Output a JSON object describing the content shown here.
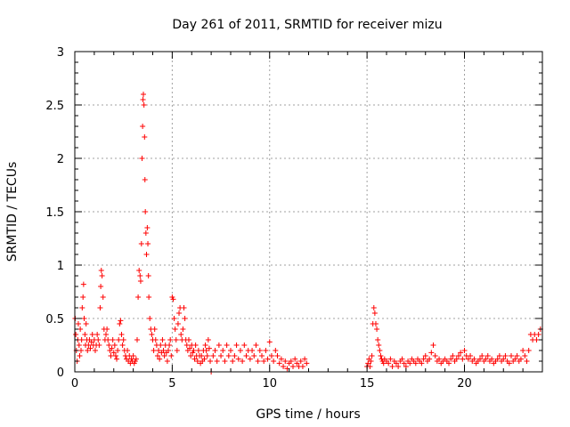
{
  "chart_data": {
    "type": "scatter",
    "title": "Day 261 of 2011, SRMTID for receiver mizu",
    "xlabel": "GPS time / hours",
    "ylabel": "SRMTID / TECUs",
    "xlim": [
      0,
      24
    ],
    "ylim": [
      0,
      3
    ],
    "xticks": [
      0,
      5,
      10,
      15,
      20
    ],
    "yticks": [
      0,
      0.5,
      1,
      1.5,
      2,
      2.5,
      3
    ],
    "grid": true,
    "marker": "plus",
    "series": [
      {
        "name": "SRMTID",
        "color": "#ff0000",
        "points": [
          [
            0.02,
            0.5
          ],
          [
            0.05,
            0.35
          ],
          [
            0.08,
            0.2
          ],
          [
            0.12,
            0.1
          ],
          [
            0.15,
            0.3
          ],
          [
            0.18,
            0.45
          ],
          [
            0.22,
            0.25
          ],
          [
            0.25,
            0.15
          ],
          [
            0.28,
            0.4
          ],
          [
            0.32,
            0.2
          ],
          [
            0.35,
            0.3
          ],
          [
            0.38,
            0.6
          ],
          [
            0.42,
            0.7
          ],
          [
            0.45,
            0.82
          ],
          [
            0.48,
            0.5
          ],
          [
            0.52,
            0.35
          ],
          [
            0.55,
            0.25
          ],
          [
            0.58,
            0.45
          ],
          [
            0.62,
            0.3
          ],
          [
            0.65,
            0.2
          ],
          [
            0.7,
            0.25
          ],
          [
            0.75,
            0.3
          ],
          [
            0.8,
            0.22
          ],
          [
            0.85,
            0.28
          ],
          [
            0.9,
            0.35
          ],
          [
            0.95,
            0.25
          ],
          [
            1.0,
            0.3
          ],
          [
            1.05,
            0.2
          ],
          [
            1.1,
            0.25
          ],
          [
            1.15,
            0.35
          ],
          [
            1.2,
            0.3
          ],
          [
            1.25,
            0.25
          ],
          [
            1.3,
            0.6
          ],
          [
            1.33,
            0.8
          ],
          [
            1.36,
            0.95
          ],
          [
            1.4,
            0.9
          ],
          [
            1.45,
            0.7
          ],
          [
            1.5,
            0.4
          ],
          [
            1.55,
            0.3
          ],
          [
            1.6,
            0.35
          ],
          [
            1.65,
            0.4
          ],
          [
            1.7,
            0.3
          ],
          [
            1.75,
            0.25
          ],
          [
            1.8,
            0.2
          ],
          [
            1.85,
            0.15
          ],
          [
            1.9,
            0.22
          ],
          [
            1.95,
            0.3
          ],
          [
            2.0,
            0.18
          ],
          [
            2.05,
            0.25
          ],
          [
            2.1,
            0.15
          ],
          [
            2.15,
            0.12
          ],
          [
            2.2,
            0.2
          ],
          [
            2.25,
            0.3
          ],
          [
            2.3,
            0.45
          ],
          [
            2.35,
            0.48
          ],
          [
            2.4,
            0.35
          ],
          [
            2.45,
            0.25
          ],
          [
            2.5,
            0.3
          ],
          [
            2.55,
            0.2
          ],
          [
            2.6,
            0.15
          ],
          [
            2.65,
            0.12
          ],
          [
            2.7,
            0.2
          ],
          [
            2.75,
            0.1
          ],
          [
            2.8,
            0.15
          ],
          [
            2.85,
            0.08
          ],
          [
            2.9,
            0.12
          ],
          [
            2.95,
            0.1
          ],
          [
            3.0,
            0.15
          ],
          [
            3.05,
            0.08
          ],
          [
            3.1,
            0.1
          ],
          [
            3.15,
            0.12
          ],
          [
            3.2,
            0.3
          ],
          [
            3.25,
            0.7
          ],
          [
            3.3,
            0.95
          ],
          [
            3.35,
            0.9
          ],
          [
            3.38,
            0.85
          ],
          [
            3.42,
            1.2
          ],
          [
            3.45,
            2.0
          ],
          [
            3.48,
            2.3
          ],
          [
            3.5,
            2.55
          ],
          [
            3.52,
            2.6
          ],
          [
            3.55,
            2.5
          ],
          [
            3.58,
            2.2
          ],
          [
            3.6,
            1.8
          ],
          [
            3.62,
            1.5
          ],
          [
            3.65,
            1.3
          ],
          [
            3.68,
            1.1
          ],
          [
            3.72,
            1.35
          ],
          [
            3.75,
            1.2
          ],
          [
            3.78,
            0.9
          ],
          [
            3.8,
            0.7
          ],
          [
            3.85,
            0.5
          ],
          [
            3.9,
            0.4
          ],
          [
            3.95,
            0.35
          ],
          [
            4.0,
            0.3
          ],
          [
            4.05,
            0.2
          ],
          [
            4.1,
            0.4
          ],
          [
            4.15,
            0.3
          ],
          [
            4.2,
            0.25
          ],
          [
            4.25,
            0.15
          ],
          [
            4.3,
            0.2
          ],
          [
            4.35,
            0.12
          ],
          [
            4.4,
            0.25
          ],
          [
            4.45,
            0.18
          ],
          [
            4.5,
            0.3
          ],
          [
            4.55,
            0.2
          ],
          [
            4.6,
            0.15
          ],
          [
            4.65,
            0.25
          ],
          [
            4.7,
            0.18
          ],
          [
            4.75,
            0.1
          ],
          [
            4.8,
            0.2
          ],
          [
            4.85,
            0.25
          ],
          [
            4.9,
            0.3
          ],
          [
            4.95,
            0.15
          ],
          [
            5.0,
            0.7
          ],
          [
            5.05,
            0.68
          ],
          [
            5.1,
            0.5
          ],
          [
            5.15,
            0.4
          ],
          [
            5.2,
            0.3
          ],
          [
            5.25,
            0.2
          ],
          [
            5.3,
            0.45
          ],
          [
            5.35,
            0.55
          ],
          [
            5.4,
            0.6
          ],
          [
            5.45,
            0.35
          ],
          [
            5.5,
            0.3
          ],
          [
            5.55,
            0.4
          ],
          [
            5.6,
            0.6
          ],
          [
            5.65,
            0.5
          ],
          [
            5.7,
            0.3
          ],
          [
            5.75,
            0.25
          ],
          [
            5.8,
            0.2
          ],
          [
            5.85,
            0.3
          ],
          [
            5.9,
            0.22
          ],
          [
            5.95,
            0.15
          ],
          [
            6.0,
            0.25
          ],
          [
            6.05,
            0.18
          ],
          [
            6.1,
            0.2
          ],
          [
            6.15,
            0.12
          ],
          [
            6.2,
            0.25
          ],
          [
            6.25,
            0.15
          ],
          [
            6.3,
            0.1
          ],
          [
            6.35,
            0.2
          ],
          [
            6.4,
            0.15
          ],
          [
            6.45,
            0.08
          ],
          [
            6.5,
            0.15
          ],
          [
            6.55,
            0.1
          ],
          [
            6.6,
            0.2
          ],
          [
            6.65,
            0.12
          ],
          [
            6.7,
            0.25
          ],
          [
            6.75,
            0.2
          ],
          [
            6.8,
            0.15
          ],
          [
            6.85,
            0.3
          ],
          [
            6.9,
            0.22
          ],
          [
            6.95,
            0.1
          ],
          [
            7.0,
            0.0
          ],
          [
            7.1,
            0.15
          ],
          [
            7.2,
            0.2
          ],
          [
            7.3,
            0.1
          ],
          [
            7.4,
            0.25
          ],
          [
            7.5,
            0.15
          ],
          [
            7.6,
            0.2
          ],
          [
            7.7,
            0.1
          ],
          [
            7.8,
            0.25
          ],
          [
            7.9,
            0.15
          ],
          [
            8.0,
            0.2
          ],
          [
            8.1,
            0.1
          ],
          [
            8.2,
            0.15
          ],
          [
            8.3,
            0.25
          ],
          [
            8.4,
            0.12
          ],
          [
            8.5,
            0.2
          ],
          [
            8.6,
            0.1
          ],
          [
            8.7,
            0.25
          ],
          [
            8.8,
            0.15
          ],
          [
            8.9,
            0.2
          ],
          [
            9.0,
            0.12
          ],
          [
            9.1,
            0.2
          ],
          [
            9.2,
            0.15
          ],
          [
            9.3,
            0.25
          ],
          [
            9.4,
            0.1
          ],
          [
            9.5,
            0.2
          ],
          [
            9.6,
            0.15
          ],
          [
            9.7,
            0.1
          ],
          [
            9.8,
            0.2
          ],
          [
            9.9,
            0.12
          ],
          [
            10.0,
            0.28
          ],
          [
            10.1,
            0.15
          ],
          [
            10.2,
            0.1
          ],
          [
            10.3,
            0.2
          ],
          [
            10.4,
            0.15
          ],
          [
            10.5,
            0.08
          ],
          [
            10.6,
            0.12
          ],
          [
            10.7,
            0.05
          ],
          [
            10.8,
            0.1
          ],
          [
            10.9,
            0.03
          ],
          [
            11.0,
            0.08
          ],
          [
            11.1,
            0.1
          ],
          [
            11.2,
            0.05
          ],
          [
            11.3,
            0.12
          ],
          [
            11.4,
            0.08
          ],
          [
            11.5,
            0.05
          ],
          [
            11.6,
            0.1
          ],
          [
            11.7,
            0.05
          ],
          [
            11.8,
            0.12
          ],
          [
            11.9,
            0.08
          ],
          [
            15.0,
            0.05
          ],
          [
            15.05,
            0.08
          ],
          [
            15.1,
            0.12
          ],
          [
            15.15,
            0.05
          ],
          [
            15.2,
            0.1
          ],
          [
            15.25,
            0.15
          ],
          [
            15.3,
            0.45
          ],
          [
            15.35,
            0.6
          ],
          [
            15.4,
            0.55
          ],
          [
            15.45,
            0.45
          ],
          [
            15.5,
            0.4
          ],
          [
            15.55,
            0.3
          ],
          [
            15.6,
            0.25
          ],
          [
            15.65,
            0.2
          ],
          [
            15.7,
            0.15
          ],
          [
            15.75,
            0.12
          ],
          [
            15.8,
            0.1
          ],
          [
            15.85,
            0.08
          ],
          [
            15.9,
            0.12
          ],
          [
            16.0,
            0.1
          ],
          [
            16.1,
            0.08
          ],
          [
            16.2,
            0.12
          ],
          [
            16.3,
            0.05
          ],
          [
            16.4,
            0.1
          ],
          [
            16.5,
            0.08
          ],
          [
            16.6,
            0.05
          ],
          [
            16.7,
            0.1
          ],
          [
            16.8,
            0.12
          ],
          [
            16.9,
            0.08
          ],
          [
            17.0,
            0.05
          ],
          [
            17.1,
            0.1
          ],
          [
            17.2,
            0.08
          ],
          [
            17.3,
            0.12
          ],
          [
            17.4,
            0.1
          ],
          [
            17.5,
            0.08
          ],
          [
            17.6,
            0.12
          ],
          [
            17.7,
            0.1
          ],
          [
            17.8,
            0.08
          ],
          [
            17.9,
            0.12
          ],
          [
            18.0,
            0.15
          ],
          [
            18.1,
            0.1
          ],
          [
            18.2,
            0.12
          ],
          [
            18.3,
            0.18
          ],
          [
            18.4,
            0.25
          ],
          [
            18.5,
            0.15
          ],
          [
            18.6,
            0.1
          ],
          [
            18.7,
            0.12
          ],
          [
            18.8,
            0.08
          ],
          [
            18.9,
            0.1
          ],
          [
            19.0,
            0.12
          ],
          [
            19.1,
            0.1
          ],
          [
            19.2,
            0.08
          ],
          [
            19.3,
            0.12
          ],
          [
            19.4,
            0.15
          ],
          [
            19.5,
            0.1
          ],
          [
            19.6,
            0.12
          ],
          [
            19.7,
            0.15
          ],
          [
            19.8,
            0.18
          ],
          [
            19.9,
            0.12
          ],
          [
            20.0,
            0.2
          ],
          [
            20.1,
            0.15
          ],
          [
            20.2,
            0.12
          ],
          [
            20.3,
            0.15
          ],
          [
            20.4,
            0.1
          ],
          [
            20.5,
            0.12
          ],
          [
            20.6,
            0.08
          ],
          [
            20.7,
            0.1
          ],
          [
            20.8,
            0.12
          ],
          [
            20.9,
            0.15
          ],
          [
            21.0,
            0.1
          ],
          [
            21.1,
            0.12
          ],
          [
            21.2,
            0.15
          ],
          [
            21.3,
            0.1
          ],
          [
            21.4,
            0.12
          ],
          [
            21.5,
            0.08
          ],
          [
            21.6,
            0.1
          ],
          [
            21.7,
            0.12
          ],
          [
            21.8,
            0.15
          ],
          [
            21.9,
            0.1
          ],
          [
            22.0,
            0.12
          ],
          [
            22.1,
            0.15
          ],
          [
            22.2,
            0.1
          ],
          [
            22.3,
            0.08
          ],
          [
            22.4,
            0.15
          ],
          [
            22.5,
            0.1
          ],
          [
            22.6,
            0.12
          ],
          [
            22.7,
            0.15
          ],
          [
            22.8,
            0.1
          ],
          [
            22.9,
            0.12
          ],
          [
            23.0,
            0.2
          ],
          [
            23.1,
            0.15
          ],
          [
            23.2,
            0.1
          ],
          [
            23.3,
            0.2
          ],
          [
            23.4,
            0.35
          ],
          [
            23.5,
            0.3
          ],
          [
            23.6,
            0.35
          ],
          [
            23.7,
            0.3
          ],
          [
            23.8,
            0.35
          ],
          [
            23.9,
            0.4
          ]
        ]
      }
    ]
  }
}
